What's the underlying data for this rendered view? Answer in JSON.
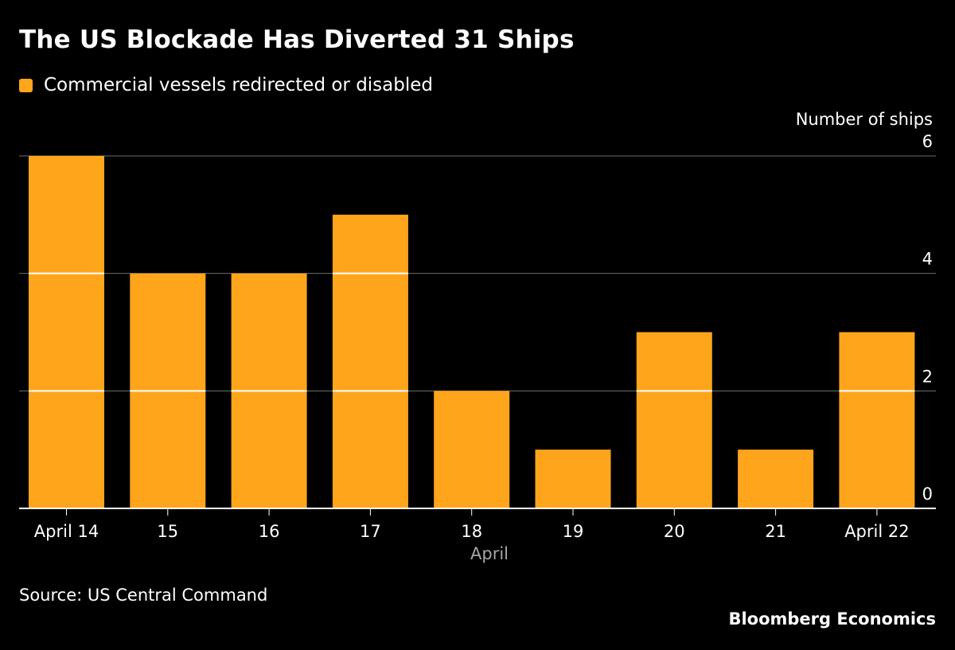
{
  "colors": {
    "background": "#000000",
    "bar": "#ffa51c",
    "text": "#ffffff",
    "muted_text": "#a6a6a6",
    "gridline": "#6e6e6e",
    "axis_line": "#ffffff"
  },
  "chart_data": {
    "type": "bar",
    "title": "The US Blockade Has Diverted 31 Ships",
    "legend": "Commercial vessels redirected or disabled",
    "ylabel": "Number of ships",
    "xlabel": "April",
    "categories": [
      "April 14",
      "15",
      "16",
      "17",
      "18",
      "19",
      "20",
      "21",
      "April 22"
    ],
    "values": [
      6,
      4,
      4,
      5,
      2,
      1,
      3,
      1,
      3
    ],
    "ylim": [
      0,
      6
    ],
    "yticks": [
      0,
      2,
      4,
      6
    ],
    "grid": true,
    "y_axis_side": "right",
    "legend_position": "top-left"
  },
  "footer": {
    "source": "Source: US Central Command",
    "brand": "Bloomberg Economics"
  }
}
